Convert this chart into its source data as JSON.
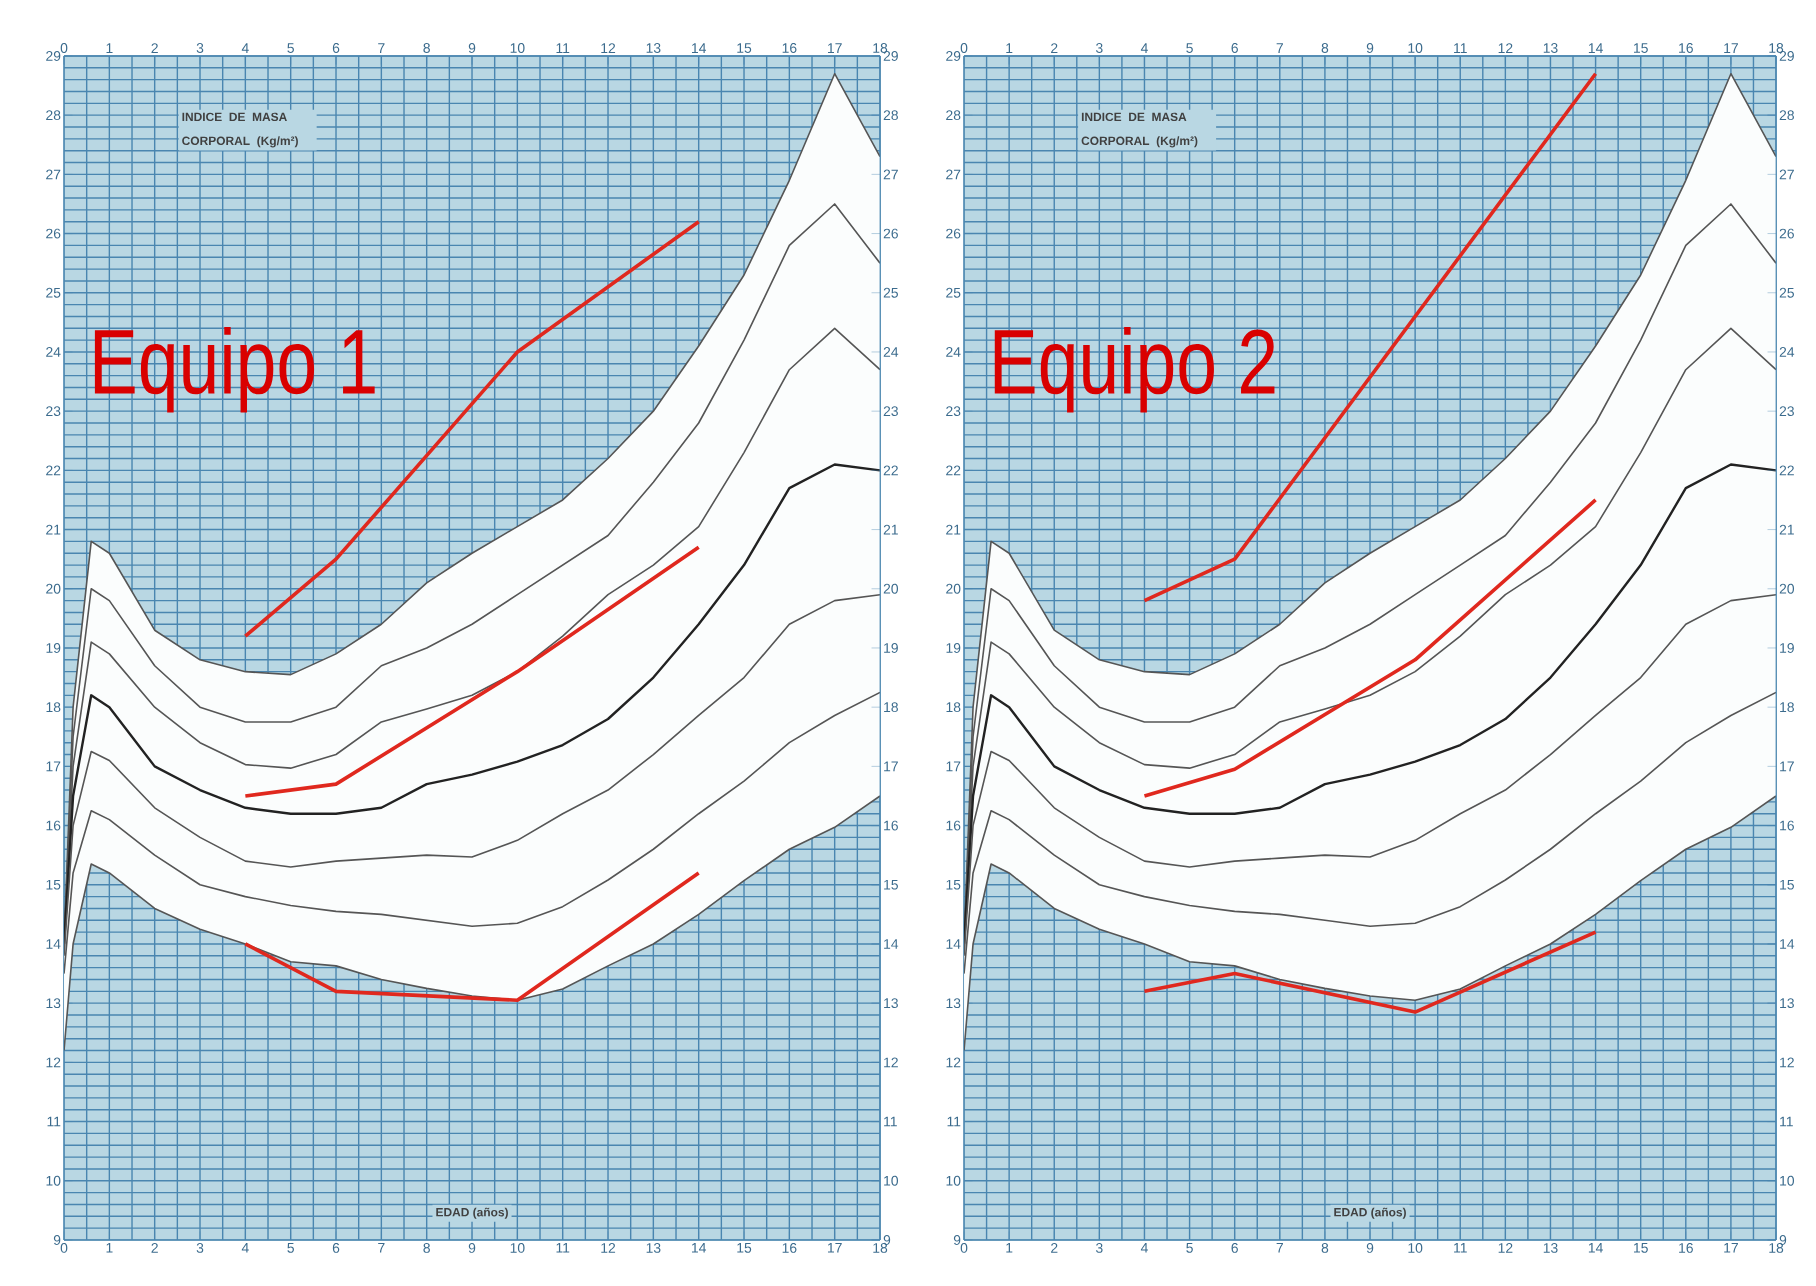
{
  "chart_data": [
    {
      "type": "line",
      "title": "Equipo 1",
      "xlabel": "EDAD (años)",
      "ylabel": "INDICE DE MASA CORPORAL (Kg/m²)",
      "xlim": [
        0,
        18
      ],
      "ylim": [
        9,
        29
      ],
      "x2lim": [
        0,
        18
      ],
      "y2lim": [
        9,
        29
      ],
      "xticks": [
        0,
        1,
        2,
        3,
        4,
        5,
        6,
        7,
        8,
        9,
        10,
        11,
        12,
        13,
        14,
        15,
        16,
        17,
        18,
        {
          "value": 0.5,
          "label": null
        },
        {
          "value": 1.5,
          "label": null
        },
        {
          "value": 2.5,
          "label": null
        },
        {
          "value": 3.5,
          "label": null
        },
        {
          "value": 4.5,
          "label": null
        },
        {
          "value": 5.5,
          "label": null
        },
        {
          "value": 6.5,
          "label": null
        },
        {
          "value": 7.5,
          "label": null
        },
        {
          "value": 8.5,
          "label": null
        },
        {
          "value": 9.5,
          "label": null
        },
        {
          "value": 10.5,
          "label": null
        },
        {
          "value": 11.5,
          "label": null
        },
        {
          "value": 12.5,
          "label": null
        },
        {
          "value": 13.5,
          "label": null
        },
        {
          "value": 14.5,
          "label": null
        },
        {
          "value": 15.5,
          "label": null
        },
        {
          "value": 16.5,
          "label": null
        },
        {
          "value": 17.5,
          "label": null
        }
      ],
      "x2ticks": [
        0,
        1,
        2,
        3,
        4,
        5,
        6,
        7,
        8,
        9,
        10,
        11,
        12,
        13,
        14,
        15,
        16,
        17,
        18
      ],
      "yticks": [
        9,
        10,
        11,
        12,
        13,
        14,
        15,
        16,
        17,
        18,
        19,
        20,
        21,
        22,
        23,
        24,
        25,
        26,
        27,
        28,
        29,
        {
          "value": 9.2,
          "label": null
        },
        {
          "value": 9.4,
          "label": null
        },
        {
          "value": 9.6,
          "label": null
        },
        {
          "value": 9.8,
          "label": null
        },
        {
          "value": 10.2,
          "label": null
        },
        {
          "value": 10.4,
          "label": null
        },
        {
          "value": 10.6,
          "label": null
        },
        {
          "value": 10.8,
          "label": null
        },
        {
          "value": 11.2,
          "label": null
        },
        {
          "value": 11.4,
          "label": null
        },
        {
          "value": 11.6,
          "label": null
        },
        {
          "value": 11.8,
          "label": null
        },
        {
          "value": 12.2,
          "label": null
        },
        {
          "value": 12.4,
          "label": null
        },
        {
          "value": 12.6,
          "label": null
        },
        {
          "value": 12.8,
          "label": null
        },
        {
          "value": 13.2,
          "label": null
        },
        {
          "value": 13.4,
          "label": null
        },
        {
          "value": 13.6,
          "label": null
        },
        {
          "value": 13.8,
          "label": null
        },
        {
          "value": 14.2,
          "label": null
        },
        {
          "value": 14.4,
          "label": null
        },
        {
          "value": 14.6,
          "label": null
        },
        {
          "value": 14.8,
          "label": null
        },
        {
          "value": 15.2,
          "label": null
        },
        {
          "value": 15.4,
          "label": null
        },
        {
          "value": 15.6,
          "label": null
        },
        {
          "value": 15.8,
          "label": null
        },
        {
          "value": 16.2,
          "label": null
        },
        {
          "value": 16.4,
          "label": null
        },
        {
          "value": 16.6,
          "label": null
        },
        {
          "value": 16.8,
          "label": null
        },
        {
          "value": 17.2,
          "label": null
        },
        {
          "value": 17.4,
          "label": null
        },
        {
          "value": 17.6,
          "label": null
        },
        {
          "value": 17.8,
          "label": null
        },
        {
          "value": 18.2,
          "label": null
        },
        {
          "value": 18.4,
          "label": null
        },
        {
          "value": 18.6,
          "label": null
        },
        {
          "value": 18.8,
          "label": null
        },
        {
          "value": 19.2,
          "label": null
        },
        {
          "value": 19.4,
          "label": null
        },
        {
          "value": 19.6,
          "label": null
        },
        {
          "value": 19.8,
          "label": null
        },
        {
          "value": 20.2,
          "label": null
        },
        {
          "value": 20.4,
          "label": null
        },
        {
          "value": 20.6,
          "label": null
        },
        {
          "value": 20.8,
          "label": null
        },
        {
          "value": 21.2,
          "label": null
        },
        {
          "value": 21.4,
          "label": null
        },
        {
          "value": 21.6,
          "label": null
        },
        {
          "value": 21.8,
          "label": null
        },
        {
          "value": 22.2,
          "label": null
        },
        {
          "value": 22.4,
          "label": null
        },
        {
          "value": 22.6,
          "label": null
        },
        {
          "value": 22.8,
          "label": null
        },
        {
          "value": 23.2,
          "label": null
        },
        {
          "value": 23.4,
          "label": null
        },
        {
          "value": 23.6,
          "label": null
        },
        {
          "value": 23.8,
          "label": null
        },
        {
          "value": 24.2,
          "label": null
        },
        {
          "value": 24.4,
          "label": null
        },
        {
          "value": 24.6,
          "label": null
        },
        {
          "value": 24.8,
          "label": null
        },
        {
          "value": 25.2,
          "label": null
        },
        {
          "value": 25.4,
          "label": null
        },
        {
          "value": 25.6,
          "label": null
        },
        {
          "value": 25.8,
          "label": null
        },
        {
          "value": 26.2,
          "label": null
        },
        {
          "value": 26.4,
          "label": null
        },
        {
          "value": 26.6,
          "label": null
        },
        {
          "value": 26.8,
          "label": null
        },
        {
          "value": 27.2,
          "label": null
        },
        {
          "value": 27.4,
          "label": null
        },
        {
          "value": 27.6,
          "label": null
        },
        {
          "value": 27.8,
          "label": null
        },
        {
          "value": 28.2,
          "label": null
        },
        {
          "value": 28.4,
          "label": null
        },
        {
          "value": 28.6,
          "label": null
        },
        {
          "value": 28.8,
          "label": null
        }
      ],
      "y2ticks": [
        9,
        10,
        11,
        12,
        13,
        14,
        15,
        16,
        17,
        18,
        19,
        20,
        21,
        22,
        23,
        24,
        25,
        26,
        27,
        28,
        29
      ],
      "grid": true,
      "series": [
        {
          "color": "#555555",
          "x": [
            0,
            0.2,
            0.6,
            1,
            2,
            3,
            4,
            5,
            6,
            7,
            8,
            9,
            10,
            11,
            12,
            13,
            14,
            15,
            16,
            17,
            18
          ],
          "values": [
            14,
            18,
            20.8,
            20.6,
            19.3,
            18.8,
            18.6,
            18.55,
            18.9,
            19.4,
            20.1,
            20.6,
            21.05,
            21.5,
            22.2,
            23,
            24.1,
            25.3,
            26.9,
            28.7,
            27.3
          ]
        },
        {
          "color": "#555555",
          "x": [
            0,
            0.2,
            0.6,
            1,
            2,
            3,
            4,
            5,
            6,
            7,
            8,
            9,
            10,
            11,
            12,
            13,
            14,
            15,
            16,
            17,
            18
          ],
          "values": [
            14,
            17.5,
            20,
            19.8,
            18.7,
            18,
            17.75,
            17.75,
            18,
            18.7,
            19,
            19.4,
            19.9,
            20.4,
            20.9,
            21.8,
            22.8,
            24.2,
            25.8,
            26.5,
            25.5
          ]
        },
        {
          "color": "#555555",
          "x": [
            0,
            0.2,
            0.6,
            1,
            2,
            3,
            4,
            5,
            6,
            7,
            8,
            9,
            10,
            11,
            12,
            13,
            14,
            15,
            16,
            17,
            18
          ],
          "values": [
            14,
            17,
            19.1,
            18.9,
            18,
            17.4,
            17.03,
            16.97,
            17.2,
            17.75,
            17.97,
            18.2,
            18.6,
            19.2,
            19.9,
            20.4,
            21.05,
            22.3,
            23.7,
            24.4,
            23.7
          ]
        },
        {
          "color": "#222222",
          "x": [
            0,
            0.2,
            0.6,
            1,
            2,
            3,
            4,
            5,
            6,
            7,
            8,
            9,
            10,
            11,
            12,
            13,
            14,
            15,
            16,
            17,
            18
          ],
          "values": [
            14,
            16.5,
            18.2,
            18,
            17,
            16.6,
            16.3,
            16.2,
            16.2,
            16.3,
            16.7,
            16.86,
            17.08,
            17.36,
            17.8,
            18.5,
            19.4,
            20.4,
            21.7,
            22.1,
            22
          ],
          "lower": [
            12.2,
            14,
            15.35,
            15.2,
            14.6,
            14.25,
            14,
            13.7,
            13.63,
            13.4,
            13.25,
            13.12,
            13.05,
            13.24,
            13.63,
            14,
            14.5,
            15.07,
            15.6,
            15.97,
            16.5
          ],
          "upper": [
            14,
            18,
            20.8,
            20.6,
            19.3,
            18.8,
            18.6,
            18.55,
            18.9,
            19.4,
            20.1,
            20.6,
            21.05,
            21.5,
            22.2,
            23,
            24.1,
            25.3,
            26.9,
            28.7,
            27.3
          ]
        },
        {
          "color": "#555555",
          "x": [
            0,
            0.2,
            0.6,
            1,
            2,
            3,
            4,
            5,
            6,
            7,
            8,
            9,
            10,
            11,
            12,
            13,
            14,
            15,
            16,
            17,
            18
          ],
          "values": [
            13.8,
            16,
            17.25,
            17.1,
            16.3,
            15.8,
            15.4,
            15.3,
            15.4,
            15.45,
            15.5,
            15.47,
            15.75,
            16.2,
            16.6,
            17.2,
            17.86,
            18.5,
            19.4,
            19.8,
            19.9
          ]
        },
        {
          "color": "#555555",
          "x": [
            0,
            0.2,
            0.6,
            1,
            2,
            3,
            4,
            5,
            6,
            7,
            8,
            9,
            10,
            11,
            12,
            13,
            14,
            15,
            16,
            17,
            18
          ],
          "values": [
            13.5,
            15.2,
            16.25,
            16.1,
            15.5,
            15,
            14.8,
            14.65,
            14.55,
            14.5,
            14.4,
            14.3,
            14.35,
            14.63,
            15.08,
            15.6,
            16.2,
            16.75,
            17.4,
            17.86,
            18.25
          ]
        },
        {
          "color": "#555555",
          "x": [
            0,
            0.2,
            0.6,
            1,
            2,
            3,
            4,
            5,
            6,
            7,
            8,
            9,
            10,
            11,
            12,
            13,
            14,
            15,
            16,
            17,
            18
          ],
          "values": [
            12.2,
            14,
            15.35,
            15.2,
            14.6,
            14.25,
            14,
            13.7,
            13.63,
            13.4,
            13.25,
            13.12,
            13.05,
            13.24,
            13.63,
            14,
            14.5,
            15.07,
            15.6,
            15.97,
            16.5
          ]
        },
        {
          "color": "#e0281e",
          "x": [
            4,
            6,
            10,
            14
          ],
          "values": [
            19.2,
            20.5,
            24,
            26.2
          ]
        },
        {
          "color": "#e0281e",
          "x": [
            4,
            6,
            10,
            14
          ],
          "values": [
            16.5,
            16.7,
            18.6,
            20.7
          ]
        },
        {
          "color": "#e0281e",
          "x": [
            4,
            6,
            10,
            14
          ],
          "values": [
            14,
            13.2,
            13.05,
            15.2
          ]
        }
      ]
    },
    {
      "type": "line",
      "title": "Equipo 2",
      "xlabel": "EDAD (años)",
      "ylabel": "INDICE DE MASA CORPORAL (Kg/m²)",
      "xlim": [
        0,
        18
      ],
      "ylim": [
        9,
        29
      ],
      "x2lim": [
        0,
        18
      ],
      "y2lim": [
        9,
        29
      ],
      "xticks": [
        0,
        1,
        2,
        3,
        4,
        5,
        6,
        7,
        8,
        9,
        10,
        11,
        12,
        13,
        14,
        15,
        16,
        17,
        18,
        {
          "value": 0.5,
          "label": null
        },
        {
          "value": 1.5,
          "label": null
        },
        {
          "value": 2.5,
          "label": null
        },
        {
          "value": 3.5,
          "label": null
        },
        {
          "value": 4.5,
          "label": null
        },
        {
          "value": 5.5,
          "label": null
        },
        {
          "value": 6.5,
          "label": null
        },
        {
          "value": 7.5,
          "label": null
        },
        {
          "value": 8.5,
          "label": null
        },
        {
          "value": 9.5,
          "label": null
        },
        {
          "value": 10.5,
          "label": null
        },
        {
          "value": 11.5,
          "label": null
        },
        {
          "value": 12.5,
          "label": null
        },
        {
          "value": 13.5,
          "label": null
        },
        {
          "value": 14.5,
          "label": null
        },
        {
          "value": 15.5,
          "label": null
        },
        {
          "value": 16.5,
          "label": null
        },
        {
          "value": 17.5,
          "label": null
        }
      ],
      "x2ticks": [
        0,
        1,
        2,
        3,
        4,
        5,
        6,
        7,
        8,
        9,
        10,
        11,
        12,
        13,
        14,
        15,
        16,
        17,
        18
      ],
      "yticks": [
        9,
        10,
        11,
        12,
        13,
        14,
        15,
        16,
        17,
        18,
        19,
        20,
        21,
        22,
        23,
        24,
        25,
        26,
        27,
        28,
        29,
        {
          "value": 9.2,
          "label": null
        },
        {
          "value": 9.4,
          "label": null
        },
        {
          "value": 9.6,
          "label": null
        },
        {
          "value": 9.8,
          "label": null
        },
        {
          "value": 10.2,
          "label": null
        },
        {
          "value": 10.4,
          "label": null
        },
        {
          "value": 10.6,
          "label": null
        },
        {
          "value": 10.8,
          "label": null
        },
        {
          "value": 11.2,
          "label": null
        },
        {
          "value": 11.4,
          "label": null
        },
        {
          "value": 11.6,
          "label": null
        },
        {
          "value": 11.8,
          "label": null
        },
        {
          "value": 12.2,
          "label": null
        },
        {
          "value": 12.4,
          "label": null
        },
        {
          "value": 12.6,
          "label": null
        },
        {
          "value": 12.8,
          "label": null
        },
        {
          "value": 13.2,
          "label": null
        },
        {
          "value": 13.4,
          "label": null
        },
        {
          "value": 13.6,
          "label": null
        },
        {
          "value": 13.8,
          "label": null
        },
        {
          "value": 14.2,
          "label": null
        },
        {
          "value": 14.4,
          "label": null
        },
        {
          "value": 14.6,
          "label": null
        },
        {
          "value": 14.8,
          "label": null
        },
        {
          "value": 15.2,
          "label": null
        },
        {
          "value": 15.4,
          "label": null
        },
        {
          "value": 15.6,
          "label": null
        },
        {
          "value": 15.8,
          "label": null
        },
        {
          "value": 16.2,
          "label": null
        },
        {
          "value": 16.4,
          "label": null
        },
        {
          "value": 16.6,
          "label": null
        },
        {
          "value": 16.8,
          "label": null
        },
        {
          "value": 17.2,
          "label": null
        },
        {
          "value": 17.4,
          "label": null
        },
        {
          "value": 17.6,
          "label": null
        },
        {
          "value": 17.8,
          "label": null
        },
        {
          "value": 18.2,
          "label": null
        },
        {
          "value": 18.4,
          "label": null
        },
        {
          "value": 18.6,
          "label": null
        },
        {
          "value": 18.8,
          "label": null
        },
        {
          "value": 19.2,
          "label": null
        },
        {
          "value": 19.4,
          "label": null
        },
        {
          "value": 19.6,
          "label": null
        },
        {
          "value": 19.8,
          "label": null
        },
        {
          "value": 20.2,
          "label": null
        },
        {
          "value": 20.4,
          "label": null
        },
        {
          "value": 20.6,
          "label": null
        },
        {
          "value": 20.8,
          "label": null
        },
        {
          "value": 21.2,
          "label": null
        },
        {
          "value": 21.4,
          "label": null
        },
        {
          "value": 21.6,
          "label": null
        },
        {
          "value": 21.8,
          "label": null
        },
        {
          "value": 22.2,
          "label": null
        },
        {
          "value": 22.4,
          "label": null
        },
        {
          "value": 22.6,
          "label": null
        },
        {
          "value": 22.8,
          "label": null
        },
        {
          "value": 23.2,
          "label": null
        },
        {
          "value": 23.4,
          "label": null
        },
        {
          "value": 23.6,
          "label": null
        },
        {
          "value": 23.8,
          "label": null
        },
        {
          "value": 24.2,
          "label": null
        },
        {
          "value": 24.4,
          "label": null
        },
        {
          "value": 24.6,
          "label": null
        },
        {
          "value": 24.8,
          "label": null
        },
        {
          "value": 25.2,
          "label": null
        },
        {
          "value": 25.4,
          "label": null
        },
        {
          "value": 25.6,
          "label": null
        },
        {
          "value": 25.8,
          "label": null
        },
        {
          "value": 26.2,
          "label": null
        },
        {
          "value": 26.4,
          "label": null
        },
        {
          "value": 26.6,
          "label": null
        },
        {
          "value": 26.8,
          "label": null
        },
        {
          "value": 27.2,
          "label": null
        },
        {
          "value": 27.4,
          "label": null
        },
        {
          "value": 27.6,
          "label": null
        },
        {
          "value": 27.8,
          "label": null
        },
        {
          "value": 28.2,
          "label": null
        },
        {
          "value": 28.4,
          "label": null
        },
        {
          "value": 28.6,
          "label": null
        },
        {
          "value": 28.8,
          "label": null
        }
      ],
      "y2ticks": [
        9,
        10,
        11,
        12,
        13,
        14,
        15,
        16,
        17,
        18,
        19,
        20,
        21,
        22,
        23,
        24,
        25,
        26,
        27,
        28,
        29
      ],
      "grid": true,
      "series": [
        {
          "color": "#555555",
          "x": [
            0,
            0.2,
            0.6,
            1,
            2,
            3,
            4,
            5,
            6,
            7,
            8,
            9,
            10,
            11,
            12,
            13,
            14,
            15,
            16,
            17,
            18
          ],
          "values": [
            14,
            18,
            20.8,
            20.6,
            19.3,
            18.8,
            18.6,
            18.55,
            18.9,
            19.4,
            20.1,
            20.6,
            21.05,
            21.5,
            22.2,
            23,
            24.1,
            25.3,
            26.9,
            28.7,
            27.3
          ]
        },
        {
          "color": "#555555",
          "x": [
            0,
            0.2,
            0.6,
            1,
            2,
            3,
            4,
            5,
            6,
            7,
            8,
            9,
            10,
            11,
            12,
            13,
            14,
            15,
            16,
            17,
            18
          ],
          "values": [
            14,
            17.5,
            20,
            19.8,
            18.7,
            18,
            17.75,
            17.75,
            18,
            18.7,
            19,
            19.4,
            19.9,
            20.4,
            20.9,
            21.8,
            22.8,
            24.2,
            25.8,
            26.5,
            25.5
          ]
        },
        {
          "color": "#555555",
          "x": [
            0,
            0.2,
            0.6,
            1,
            2,
            3,
            4,
            5,
            6,
            7,
            8,
            9,
            10,
            11,
            12,
            13,
            14,
            15,
            16,
            17,
            18
          ],
          "values": [
            14,
            17,
            19.1,
            18.9,
            18,
            17.4,
            17.03,
            16.97,
            17.2,
            17.75,
            17.97,
            18.2,
            18.6,
            19.2,
            19.9,
            20.4,
            21.05,
            22.3,
            23.7,
            24.4,
            23.7
          ]
        },
        {
          "color": "#222222",
          "x": [
            0,
            0.2,
            0.6,
            1,
            2,
            3,
            4,
            5,
            6,
            7,
            8,
            9,
            10,
            11,
            12,
            13,
            14,
            15,
            16,
            17,
            18
          ],
          "values": [
            14,
            16.5,
            18.2,
            18,
            17,
            16.6,
            16.3,
            16.2,
            16.2,
            16.3,
            16.7,
            16.86,
            17.08,
            17.36,
            17.8,
            18.5,
            19.4,
            20.4,
            21.7,
            22.1,
            22
          ],
          "lower": [
            12.2,
            14,
            15.35,
            15.2,
            14.6,
            14.25,
            14,
            13.7,
            13.63,
            13.4,
            13.25,
            13.12,
            13.05,
            13.24,
            13.63,
            14,
            14.5,
            15.07,
            15.6,
            15.97,
            16.5
          ],
          "upper": [
            14,
            18,
            20.8,
            20.6,
            19.3,
            18.8,
            18.6,
            18.55,
            18.9,
            19.4,
            20.1,
            20.6,
            21.05,
            21.5,
            22.2,
            23,
            24.1,
            25.3,
            26.9,
            28.7,
            27.3
          ]
        },
        {
          "color": "#555555",
          "x": [
            0,
            0.2,
            0.6,
            1,
            2,
            3,
            4,
            5,
            6,
            7,
            8,
            9,
            10,
            11,
            12,
            13,
            14,
            15,
            16,
            17,
            18
          ],
          "values": [
            13.8,
            16,
            17.25,
            17.1,
            16.3,
            15.8,
            15.4,
            15.3,
            15.4,
            15.45,
            15.5,
            15.47,
            15.75,
            16.2,
            16.6,
            17.2,
            17.86,
            18.5,
            19.4,
            19.8,
            19.9
          ]
        },
        {
          "color": "#555555",
          "x": [
            0,
            0.2,
            0.6,
            1,
            2,
            3,
            4,
            5,
            6,
            7,
            8,
            9,
            10,
            11,
            12,
            13,
            14,
            15,
            16,
            17,
            18
          ],
          "values": [
            13.5,
            15.2,
            16.25,
            16.1,
            15.5,
            15,
            14.8,
            14.65,
            14.55,
            14.5,
            14.4,
            14.3,
            14.35,
            14.63,
            15.08,
            15.6,
            16.2,
            16.75,
            17.4,
            17.86,
            18.25
          ]
        },
        {
          "color": "#555555",
          "x": [
            0,
            0.2,
            0.6,
            1,
            2,
            3,
            4,
            5,
            6,
            7,
            8,
            9,
            10,
            11,
            12,
            13,
            14,
            15,
            16,
            17,
            18
          ],
          "values": [
            12.2,
            14,
            15.35,
            15.2,
            14.6,
            14.25,
            14,
            13.7,
            13.63,
            13.4,
            13.25,
            13.12,
            13.05,
            13.24,
            13.63,
            14,
            14.5,
            15.07,
            15.6,
            15.97,
            16.5
          ]
        },
        {
          "color": "#e0281e",
          "x": [
            4,
            6,
            14
          ],
          "values": [
            19.8,
            20.5,
            28.7
          ]
        },
        {
          "color": "#e0281e",
          "x": [
            4,
            6,
            10,
            14
          ],
          "values": [
            16.5,
            16.95,
            18.8,
            21.5
          ]
        },
        {
          "color": "#e0281e",
          "x": [
            4,
            6,
            10,
            14
          ],
          "values": [
            13.2,
            13.5,
            12.85,
            14.2
          ]
        }
      ]
    }
  ]
}
